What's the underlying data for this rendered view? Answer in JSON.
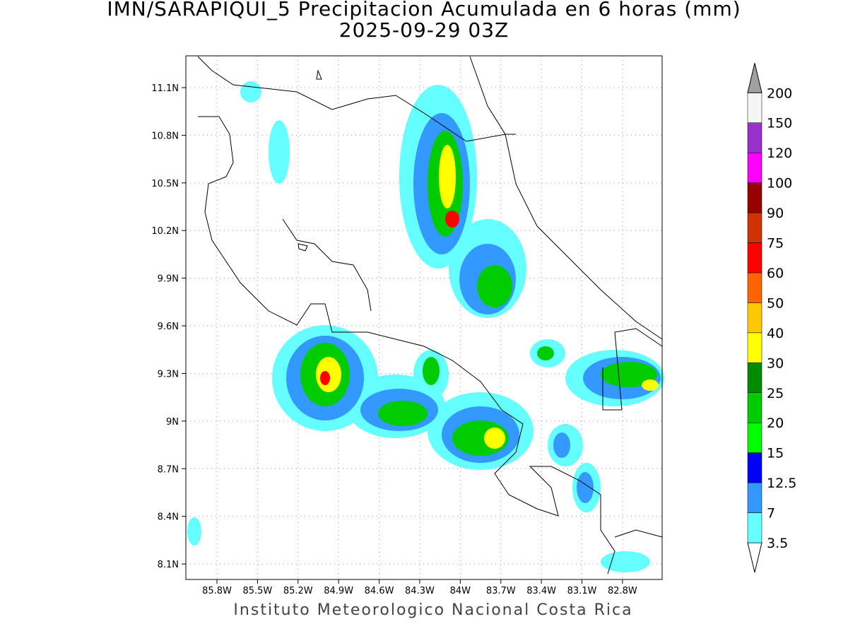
{
  "title": "IMN/SARAPIQUI_5 Precipitacion Acumulada en 6 horas (mm)",
  "subtitle": "2025-09-29 03Z",
  "map": {
    "lat_ticks": [
      {
        "value": 11.1,
        "label": "11.1N"
      },
      {
        "value": 10.8,
        "label": "10.8N"
      },
      {
        "value": 10.5,
        "label": "10.5N"
      },
      {
        "value": 10.2,
        "label": "10.2N"
      },
      {
        "value": 9.9,
        "label": "9.9N"
      },
      {
        "value": 9.6,
        "label": "9.6N"
      },
      {
        "value": 9.3,
        "label": "9.3N"
      },
      {
        "value": 9.0,
        "label": "9N"
      },
      {
        "value": 8.7,
        "label": "8.7N"
      },
      {
        "value": 8.4,
        "label": "8.4N"
      },
      {
        "value": 8.1,
        "label": "8.1N"
      }
    ],
    "lon_ticks": [
      {
        "value": -85.8,
        "label": "85.8W"
      },
      {
        "value": -85.5,
        "label": "85.5W"
      },
      {
        "value": -85.2,
        "label": "85.2W"
      },
      {
        "value": -84.9,
        "label": "84.9W"
      },
      {
        "value": -84.6,
        "label": "84.6W"
      },
      {
        "value": -84.3,
        "label": "84.3W"
      },
      {
        "value": -84.0,
        "label": "84W"
      },
      {
        "value": -83.7,
        "label": "83.7W"
      },
      {
        "value": -83.4,
        "label": "83.4W"
      },
      {
        "value": -83.1,
        "label": "83.1W"
      },
      {
        "value": -82.8,
        "label": "82.8W"
      }
    ]
  },
  "colorbar": {
    "levels": [
      "3.5",
      "7",
      "12.5",
      "15",
      "20",
      "25",
      "30",
      "40",
      "50",
      "60",
      "75",
      "90",
      "100",
      "120",
      "150",
      "200"
    ],
    "colors": [
      "#66ffff",
      "#3399ff",
      "#0000ff",
      "#00ff00",
      "#00cc00",
      "#008c00",
      "#ffff00",
      "#ffc800",
      "#ff6400",
      "#ff0000",
      "#d03200",
      "#960000",
      "#ff00ff",
      "#9932cc",
      "#f5f5f5"
    ],
    "under_color": "#ffffff",
    "over_color": "#a0a0a0"
  },
  "footer": "Instituto Meteorologico Nacional Costa Rica"
}
